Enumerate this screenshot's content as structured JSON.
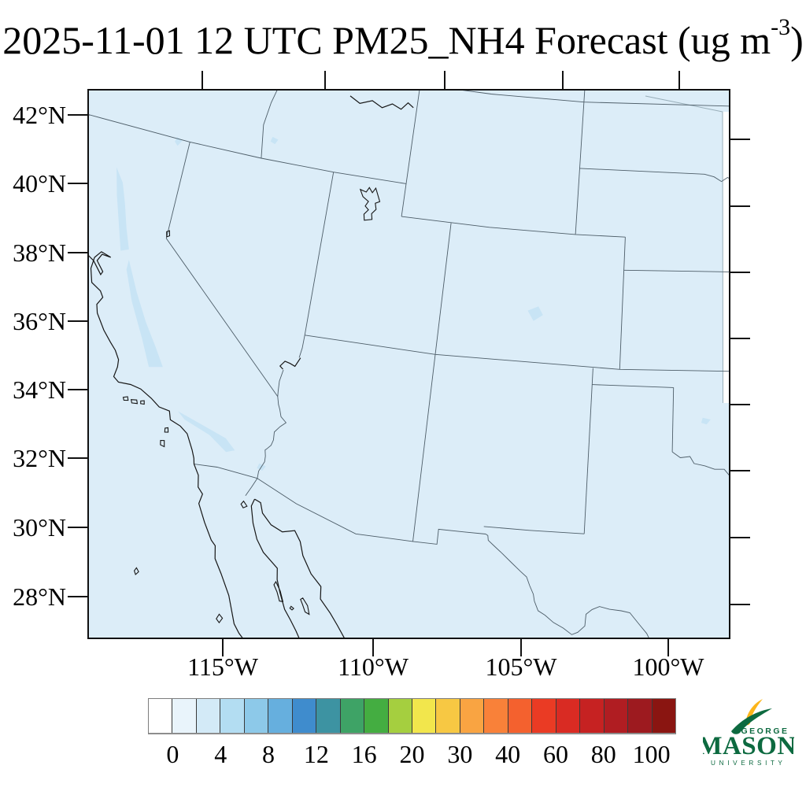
{
  "title": {
    "prefix": "2025-11-01 12 UTC PM25_NH4 Forecast (ug m",
    "superscript": "-3",
    "suffix": ")"
  },
  "map_axes": {
    "lat_labels": [
      "42°N",
      "40°N",
      "38°N",
      "36°N",
      "34°N",
      "32°N",
      "30°N",
      "28°N"
    ],
    "lat_values": [
      42,
      40,
      38,
      36,
      34,
      32,
      30,
      28
    ],
    "lon_labels": [
      "115°W",
      "110°W",
      "105°W",
      "100°W"
    ],
    "lon_values": [
      -115,
      -110,
      -105,
      -100
    ],
    "top_tick_lons": [
      -120,
      -115,
      -110,
      -105,
      -100
    ],
    "right_tick_lats": [
      44,
      42,
      40,
      38,
      36,
      34,
      32,
      30
    ]
  },
  "colorbar": {
    "tick_labels": [
      "0",
      "4",
      "8",
      "12",
      "16",
      "20",
      "30",
      "40",
      "60",
      "80",
      "100"
    ],
    "cell_colors": [
      "#ffffff",
      "#e9f4fb",
      "#d3eaf7",
      "#b3ddf2",
      "#8dc9e9",
      "#66afde",
      "#3f8ccd",
      "#3d93a2",
      "#3ea366",
      "#44ad41",
      "#a5cf3f",
      "#f2e64c",
      "#f7c843",
      "#f9a442",
      "#f98139",
      "#f4612e",
      "#ea3b24",
      "#d92b23",
      "#c62222",
      "#b01d22",
      "#9d1a1f",
      "#8a1511"
    ]
  },
  "logo": {
    "george": "GEORGE",
    "mason": "MASON",
    "university": "U N I V E R S I T Y",
    "green": "#0d6a40",
    "gold": "#fcb51a"
  },
  "colors": {
    "field_fill": "#dcedf8",
    "field_patch": "#c8e4f5",
    "state_border": "#4d5d68",
    "coastline": "#161616",
    "frame": "#111111",
    "domain_edge": "#97adb8"
  }
}
